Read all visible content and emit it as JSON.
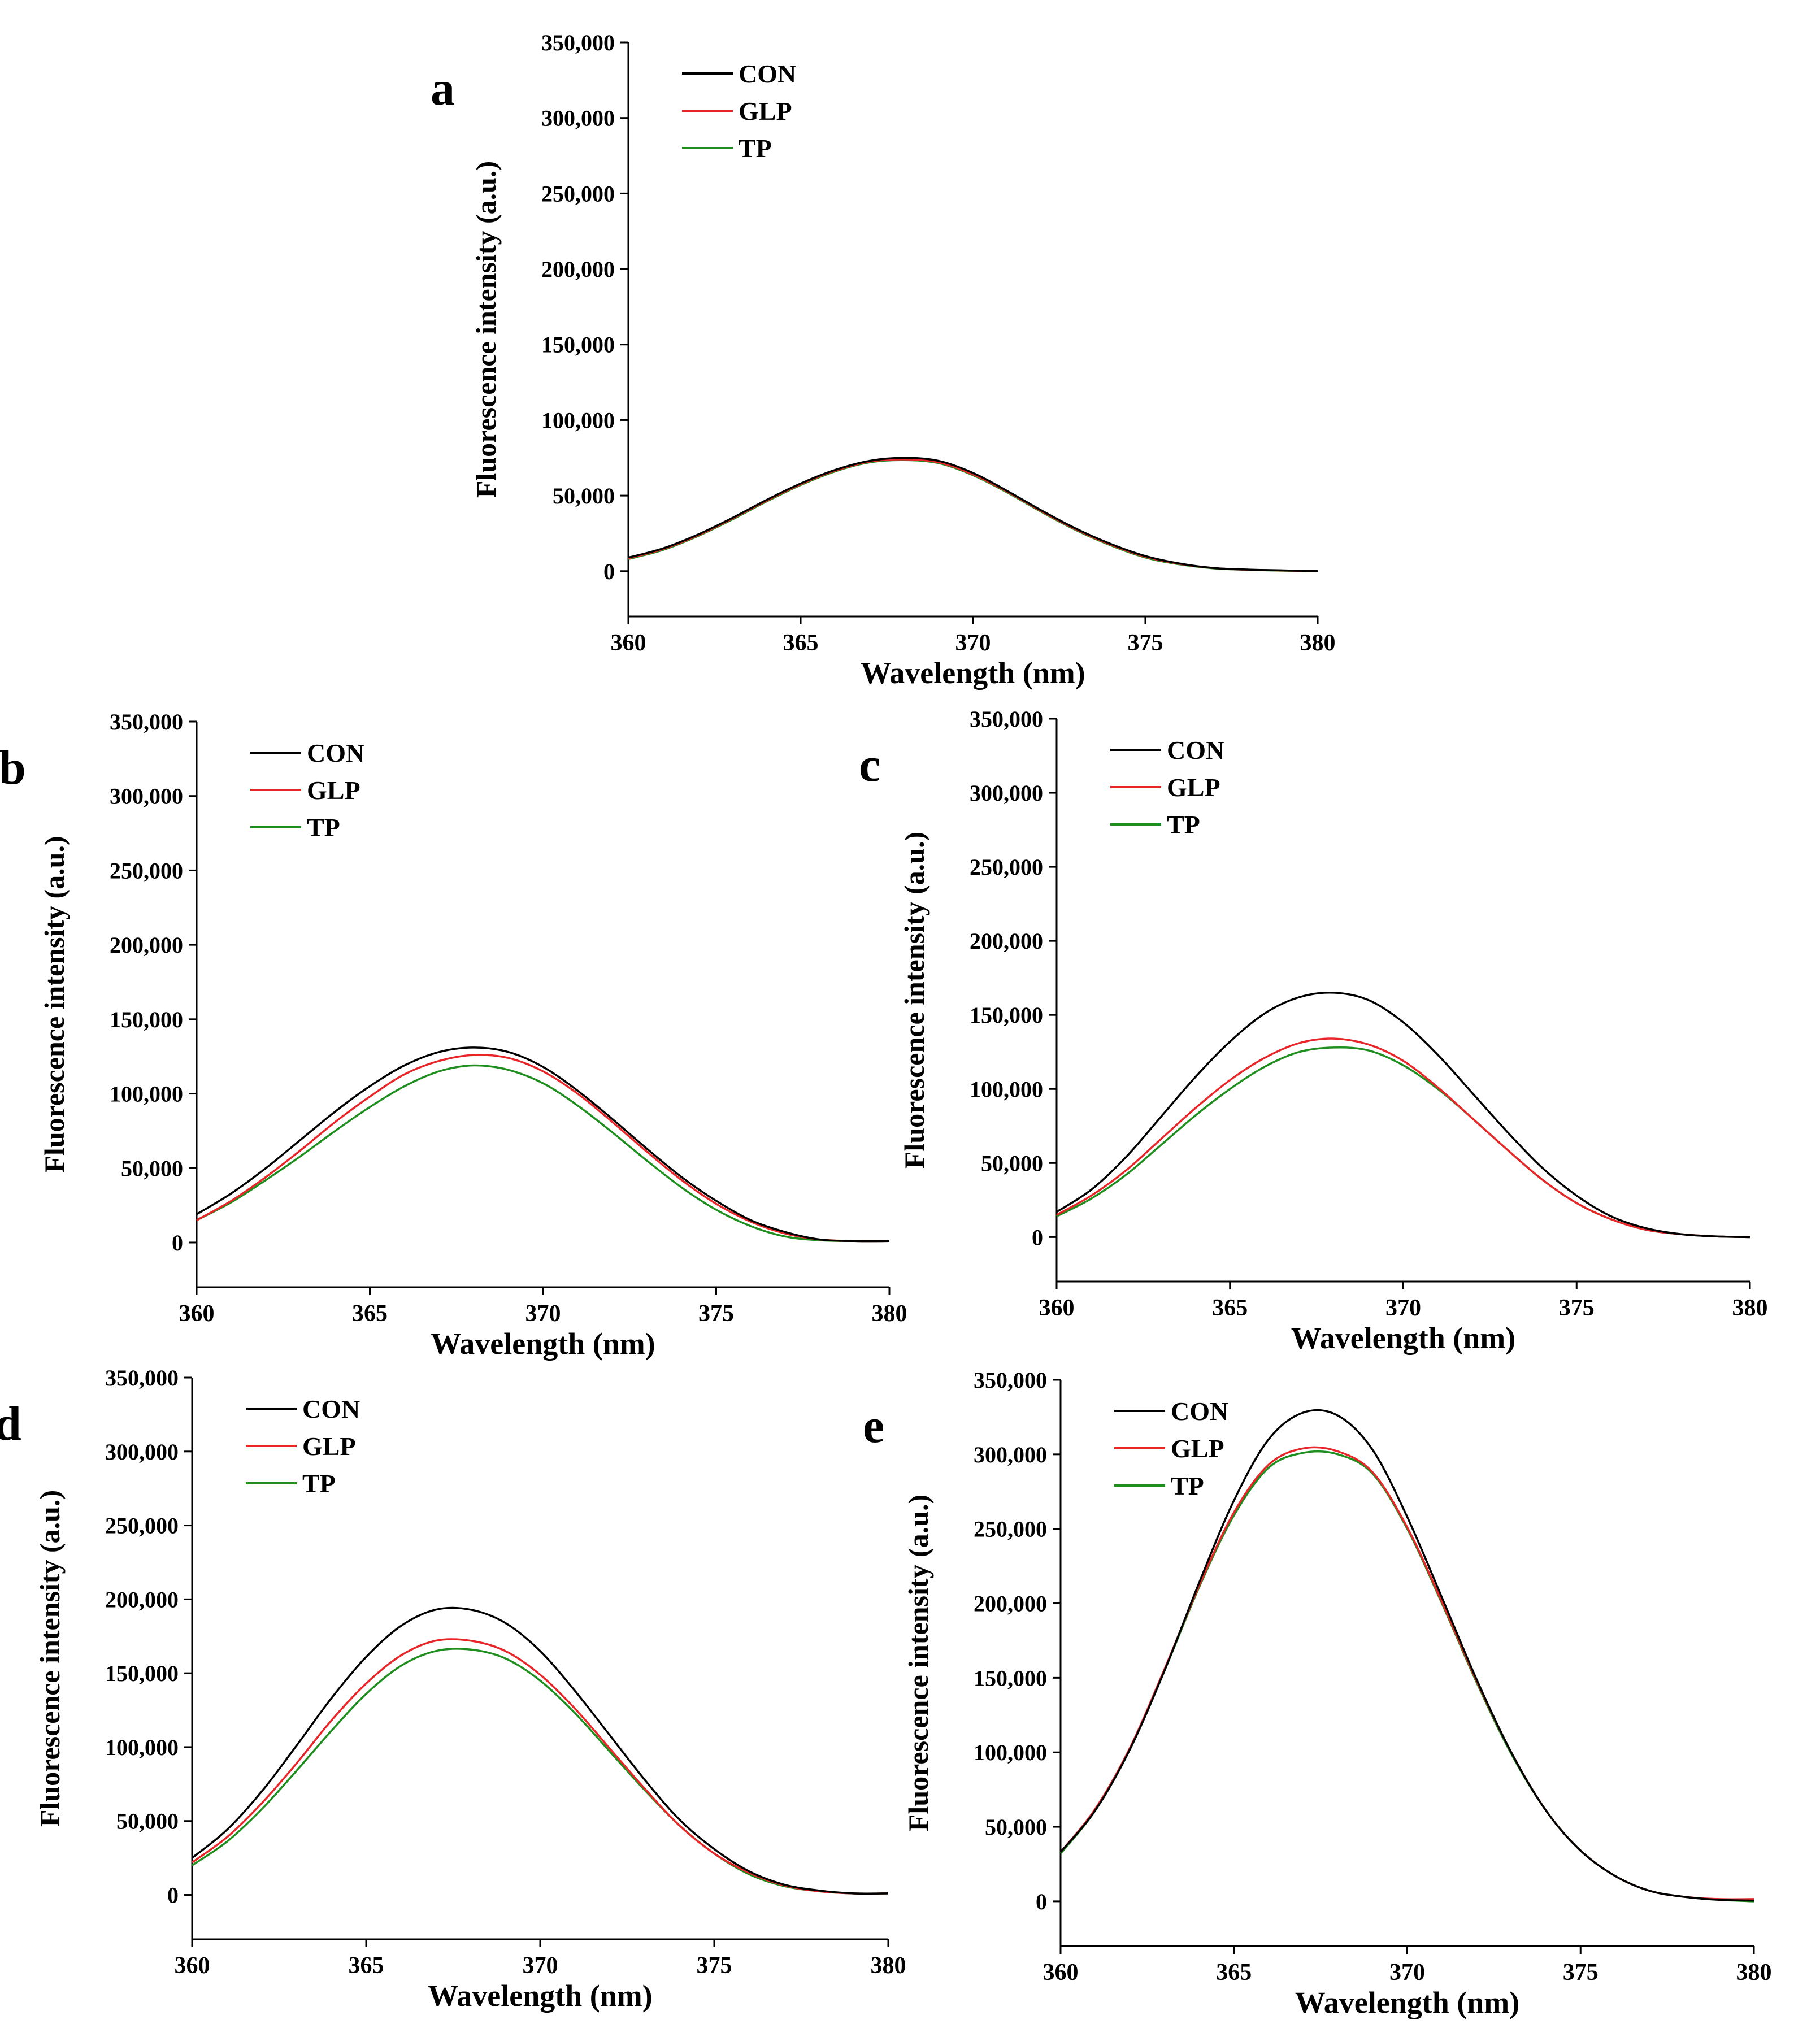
{
  "figure": {
    "series_colors": {
      "CON": "#000000",
      "GLP": "#e8262a",
      "TP": "#1e8f1e"
    }
  },
  "chart_data": [
    {
      "type": "line",
      "panel_label": "a",
      "xlabel": "Wavelength (nm)",
      "ylabel": "Fluorescence intensity (a.u.)",
      "xlim": [
        360,
        380
      ],
      "ylim": [
        -30000,
        350000
      ],
      "xticks": [
        360,
        365,
        370,
        375,
        380
      ],
      "xtick_labels": [
        "360",
        "365",
        "370",
        "375",
        "380"
      ],
      "yticks": [
        0,
        50000,
        100000,
        150000,
        200000,
        250000,
        300000,
        350000
      ],
      "ytick_labels": [
        "0",
        "50,000",
        "100,000",
        "150,000",
        "200,000",
        "250,000",
        "300,000",
        "350,000"
      ],
      "legend": [
        "CON",
        "GLP",
        "TP"
      ],
      "legend_position": "top-left",
      "x": [
        360,
        361,
        362,
        363,
        364,
        365,
        366,
        367,
        368,
        369,
        370,
        371,
        372,
        373,
        374,
        375,
        376,
        377,
        378,
        379,
        380
      ],
      "series": [
        {
          "name": "CON",
          "values": [
            9000,
            15000,
            24000,
            35000,
            47000,
            58000,
            67000,
            73000,
            75000,
            73000,
            65000,
            53000,
            40000,
            28000,
            18000,
            10000,
            5000,
            2000,
            1000,
            500,
            0
          ]
        },
        {
          "name": "GLP",
          "values": [
            8500,
            14500,
            23500,
            34500,
            46500,
            57500,
            66500,
            72500,
            74000,
            72000,
            64000,
            52500,
            39500,
            27500,
            17500,
            9500,
            4800,
            2000,
            900,
            400,
            0
          ]
        },
        {
          "name": "TP",
          "values": [
            8000,
            14000,
            23000,
            34000,
            46000,
            57000,
            66000,
            72000,
            73500,
            71500,
            63500,
            52000,
            39000,
            27000,
            17000,
            9000,
            4500,
            1800,
            800,
            300,
            0
          ]
        }
      ]
    },
    {
      "type": "line",
      "panel_label": "b",
      "xlabel": "Wavelength (nm)",
      "ylabel": "Fluorescence intensity (a.u.)",
      "xlim": [
        360,
        380
      ],
      "ylim": [
        -30000,
        350000
      ],
      "xticks": [
        360,
        365,
        370,
        375,
        380
      ],
      "xtick_labels": [
        "360",
        "365",
        "370",
        "375",
        "380"
      ],
      "yticks": [
        0,
        50000,
        100000,
        150000,
        200000,
        250000,
        300000,
        350000
      ],
      "ytick_labels": [
        "0",
        "50,000",
        "100,000",
        "150,000",
        "200,000",
        "250,000",
        "300,000",
        "350,000"
      ],
      "legend": [
        "CON",
        "GLP",
        "TP"
      ],
      "legend_position": "top-left",
      "x": [
        360,
        361,
        362,
        363,
        364,
        365,
        366,
        367,
        368,
        369,
        370,
        371,
        372,
        373,
        374,
        375,
        376,
        377,
        378,
        379,
        380
      ],
      "series": [
        {
          "name": "CON",
          "values": [
            19000,
            33000,
            50000,
            69000,
            88000,
            105000,
            119000,
            128000,
            131000,
            128000,
            118000,
            102000,
            83000,
            63000,
            44000,
            28000,
            15000,
            7000,
            2000,
            1000,
            1000
          ]
        },
        {
          "name": "GLP",
          "values": [
            15000,
            28000,
            44000,
            62000,
            81000,
            98000,
            113000,
            122000,
            126000,
            124000,
            115000,
            100000,
            81000,
            61000,
            42000,
            26000,
            14000,
            6000,
            2000,
            1000,
            1000
          ]
        },
        {
          "name": "TP",
          "values": [
            15000,
            27000,
            42000,
            58000,
            75000,
            91000,
            105000,
            115000,
            119000,
            116000,
            107000,
            92000,
            74000,
            55000,
            37000,
            22000,
            11000,
            4000,
            1500,
            1000,
            1000
          ]
        }
      ]
    },
    {
      "type": "line",
      "panel_label": "c",
      "xlabel": "Wavelength (nm)",
      "ylabel": "Fluorescence intensity (a.u.)",
      "xlim": [
        360,
        380
      ],
      "ylim": [
        -30000,
        350000
      ],
      "xticks": [
        360,
        365,
        370,
        375,
        380
      ],
      "xtick_labels": [
        "360",
        "365",
        "370",
        "375",
        "380"
      ],
      "yticks": [
        0,
        50000,
        100000,
        150000,
        200000,
        250000,
        300000,
        350000
      ],
      "ytick_labels": [
        "0",
        "50,000",
        "100,000",
        "150,000",
        "200,000",
        "250,000",
        "300,000",
        "350,000"
      ],
      "legend": [
        "CON",
        "GLP",
        "TP"
      ],
      "legend_position": "top-left",
      "x": [
        360,
        361,
        362,
        363,
        364,
        365,
        366,
        367,
        368,
        369,
        370,
        371,
        372,
        373,
        374,
        375,
        376,
        377,
        378,
        379,
        380
      ],
      "series": [
        {
          "name": "CON",
          "values": [
            17000,
            32000,
            54000,
            81000,
            108000,
            132000,
            151000,
            162000,
            165000,
            160000,
            145000,
            123000,
            97000,
            71000,
            47000,
            28000,
            14000,
            6000,
            2000,
            500,
            0
          ]
        },
        {
          "name": "GLP",
          "values": [
            15000,
            28000,
            45000,
            66000,
            87000,
            106000,
            121000,
            131000,
            134000,
            130000,
            119000,
            101000,
            80000,
            59000,
            39000,
            23000,
            12000,
            5000,
            2000,
            500,
            0
          ]
        },
        {
          "name": "TP",
          "values": [
            14000,
            26000,
            42000,
            62000,
            82000,
            100000,
            115000,
            125000,
            128000,
            126000,
            116000,
            100000,
            80000,
            59000,
            39000,
            23000,
            12000,
            5000,
            2000,
            500,
            0
          ]
        }
      ]
    },
    {
      "type": "line",
      "panel_label": "d",
      "xlabel": "Wavelength (nm)",
      "ylabel": "Fluorescence intensity (a.u.)",
      "xlim": [
        360,
        380
      ],
      "ylim": [
        -30000,
        350000
      ],
      "xticks": [
        360,
        365,
        370,
        375,
        380
      ],
      "xtick_labels": [
        "360",
        "365",
        "370",
        "375",
        "380"
      ],
      "yticks": [
        0,
        50000,
        100000,
        150000,
        200000,
        250000,
        300000,
        350000
      ],
      "ytick_labels": [
        "0",
        "50,000",
        "100,000",
        "150,000",
        "200,000",
        "250,000",
        "300,000",
        "350,000"
      ],
      "legend": [
        "CON",
        "GLP",
        "TP"
      ],
      "legend_position": "top-left",
      "x": [
        360,
        361,
        362,
        363,
        364,
        365,
        366,
        367,
        368,
        369,
        370,
        371,
        372,
        373,
        374,
        375,
        376,
        377,
        378,
        379,
        380
      ],
      "series": [
        {
          "name": "CON",
          "values": [
            25000,
            44000,
            70000,
            101000,
            133000,
            161000,
            182000,
            193000,
            193000,
            184000,
            165000,
            138000,
            108000,
            78000,
            51000,
            31000,
            16000,
            7000,
            3000,
            1000,
            1000
          ]
        },
        {
          "name": "GLP",
          "values": [
            22000,
            39000,
            62000,
            89000,
            118000,
            143000,
            162000,
            172000,
            172000,
            165000,
            149000,
            126000,
            99000,
            72000,
            47000,
            28000,
            15000,
            6500,
            2500,
            1000,
            1000
          ]
        },
        {
          "name": "TP",
          "values": [
            20000,
            36000,
            58000,
            84000,
            111000,
            136000,
            155000,
            165000,
            166000,
            160000,
            145000,
            123000,
            97000,
            71000,
            47000,
            28000,
            14000,
            6000,
            2500,
            1000,
            1000
          ]
        }
      ]
    },
    {
      "type": "line",
      "panel_label": "e",
      "xlabel": "Wavelength (nm)",
      "ylabel": "Fluorescence intensity (a.u.)",
      "xlim": [
        360,
        380
      ],
      "ylim": [
        -30000,
        350000
      ],
      "xticks": [
        360,
        365,
        370,
        375,
        380
      ],
      "xtick_labels": [
        "360",
        "365",
        "370",
        "375",
        "380"
      ],
      "yticks": [
        0,
        50000,
        100000,
        150000,
        200000,
        250000,
        300000,
        350000
      ],
      "ytick_labels": [
        "0",
        "50,000",
        "100,000",
        "150,000",
        "200,000",
        "250,000",
        "300,000",
        "350,000"
      ],
      "legend": [
        "CON",
        "GLP",
        "TP"
      ],
      "legend_position": "top-left",
      "x": [
        360,
        361,
        362,
        363,
        364,
        365,
        366,
        367,
        368,
        369,
        370,
        371,
        372,
        373,
        374,
        375,
        376,
        377,
        378,
        379,
        380
      ],
      "series": [
        {
          "name": "CON",
          "values": [
            33000,
            61000,
            102000,
            155000,
            214000,
            269000,
            310000,
            328000,
            326000,
            303000,
            258000,
            204000,
            149000,
            100000,
            61000,
            34000,
            17000,
            7000,
            3000,
            1000,
            500
          ]
        },
        {
          "name": "GLP",
          "values": [
            33000,
            62000,
            103000,
            156000,
            212000,
            261000,
            293000,
            304000,
            302000,
            288000,
            251000,
            201000,
            148000,
            100000,
            61000,
            34000,
            17000,
            7000,
            3000,
            1500,
            1500
          ]
        },
        {
          "name": "TP",
          "values": [
            32000,
            61000,
            102000,
            155000,
            211000,
            259000,
            291000,
            301000,
            300000,
            287000,
            250000,
            200000,
            147000,
            99000,
            61000,
            34000,
            17000,
            7000,
            3000,
            1000,
            0
          ]
        }
      ]
    }
  ]
}
